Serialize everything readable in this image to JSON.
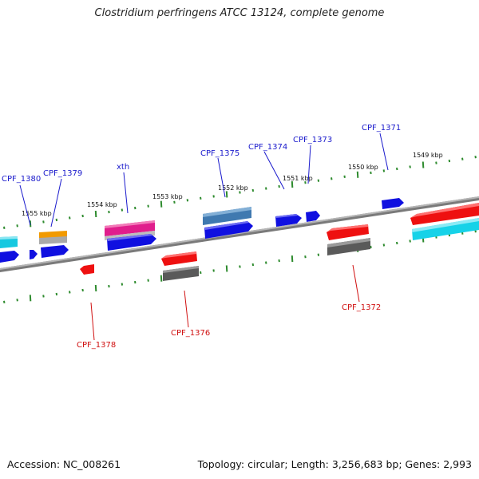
{
  "title": "Clostridium perfringens ATCC 13124, complete genome",
  "accession": "Accession: NC_008261",
  "summary": "Topology: circular; Length: 3,256,683 bp; Genes: 2,993",
  "colors": {
    "forward_label": "#1a1acc",
    "reverse_label": "#d01010",
    "backbone": "#7a7a7a",
    "tick": "#2e8b2e"
  },
  "scale_labels": [
    "1555 kbp",
    "1554 kbp",
    "1553 kbp",
    "1552 kbp",
    "1551 kbp",
    "1550 kbp",
    "1549 kbp"
  ],
  "forward_gene_labels": [
    "CPF_1380",
    "CPF_1379",
    "xth",
    "CPF_1375",
    "CPF_1374",
    "CPF_1373",
    "CPF_1371"
  ],
  "reverse_gene_labels": [
    "CPF_1378",
    "CPF_1376",
    "CPF_1372"
  ]
}
